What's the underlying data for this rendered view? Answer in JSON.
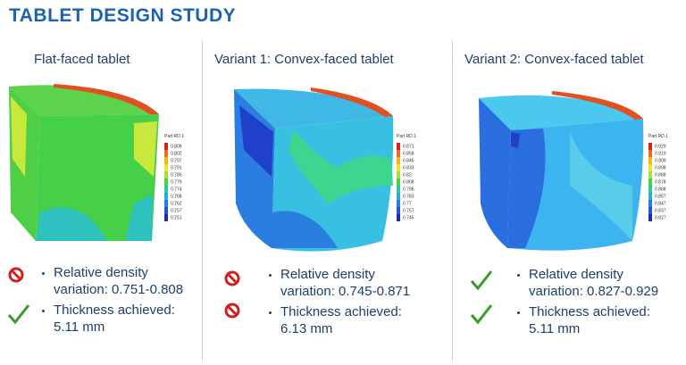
{
  "title": "TABLET DESIGN STUDY",
  "panels": [
    {
      "heading": "Flat-faced tablet",
      "legend_title": "Part RD.1",
      "legend": [
        "0.808",
        "0.802",
        "0.797",
        "0.791",
        "0.785",
        "0.779",
        "0.774",
        "0.768",
        "0.762",
        "0.757",
        "0.751"
      ],
      "bullets": [
        "Relative density variation: 0.751-0.808",
        "Thickness achieved: 5.11 mm"
      ]
    },
    {
      "heading": "Variant 1: Convex-faced tablet",
      "legend_title": "Part RD.1",
      "legend": [
        "0.871",
        "0.858",
        "0.845",
        "0.833",
        "0.82",
        "0.808",
        "0.796",
        "0.783",
        "0.77",
        "0.757",
        "0.745"
      ],
      "bullets": [
        "Relative density variation: 0.745-0.871",
        "Thickness achieved: 6.13 mm"
      ]
    },
    {
      "heading": "Variant 2: Convex-faced tablet",
      "legend_title": "Part RD.1",
      "legend": [
        "0.929",
        "0.919",
        "0.909",
        "0.898",
        "0.888",
        "0.878",
        "0.868",
        "0.857",
        "0.847",
        "0.837",
        "0.827"
      ],
      "bullets": [
        "Relative density variation: 0.827-0.929",
        "Thickness achieved: 5.11 mm"
      ]
    }
  ]
}
